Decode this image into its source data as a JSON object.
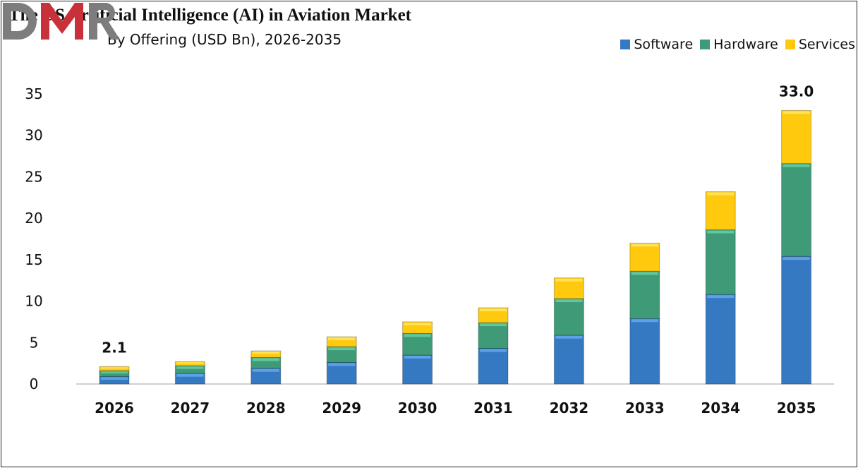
{
  "title": "The US Artificial Intelligence (AI) in Aviation Market",
  "subtitle": "By Offering (USD Bn), 2026-2035",
  "logo_text": "DMR",
  "chart_data": {
    "type": "bar",
    "stacked": true,
    "categories": [
      "2026",
      "2027",
      "2028",
      "2029",
      "2030",
      "2031",
      "2032",
      "2033",
      "2034",
      "2035"
    ],
    "series": [
      {
        "name": "Software",
        "color": "#3579c2",
        "values": [
          0.9,
          1.3,
          1.9,
          2.6,
          3.5,
          4.3,
          5.9,
          7.9,
          10.8,
          15.4
        ]
      },
      {
        "name": "Hardware",
        "color": "#3f9a78",
        "values": [
          0.7,
          0.9,
          1.3,
          1.9,
          2.6,
          3.1,
          4.4,
          5.7,
          7.8,
          11.2
        ]
      },
      {
        "name": "Services",
        "color": "#ffc90e",
        "values": [
          0.5,
          0.5,
          0.8,
          1.2,
          1.4,
          1.8,
          2.5,
          3.4,
          4.6,
          6.4
        ]
      }
    ],
    "data_labels": [
      {
        "category": "2026",
        "text": "2.1"
      },
      {
        "category": "2035",
        "text": "33.0"
      }
    ],
    "ylim": [
      0,
      35
    ],
    "yticks": [
      "0",
      "5",
      "10",
      "15",
      "20",
      "25",
      "30",
      "35"
    ],
    "grid": false,
    "legend_position": "top-right"
  }
}
